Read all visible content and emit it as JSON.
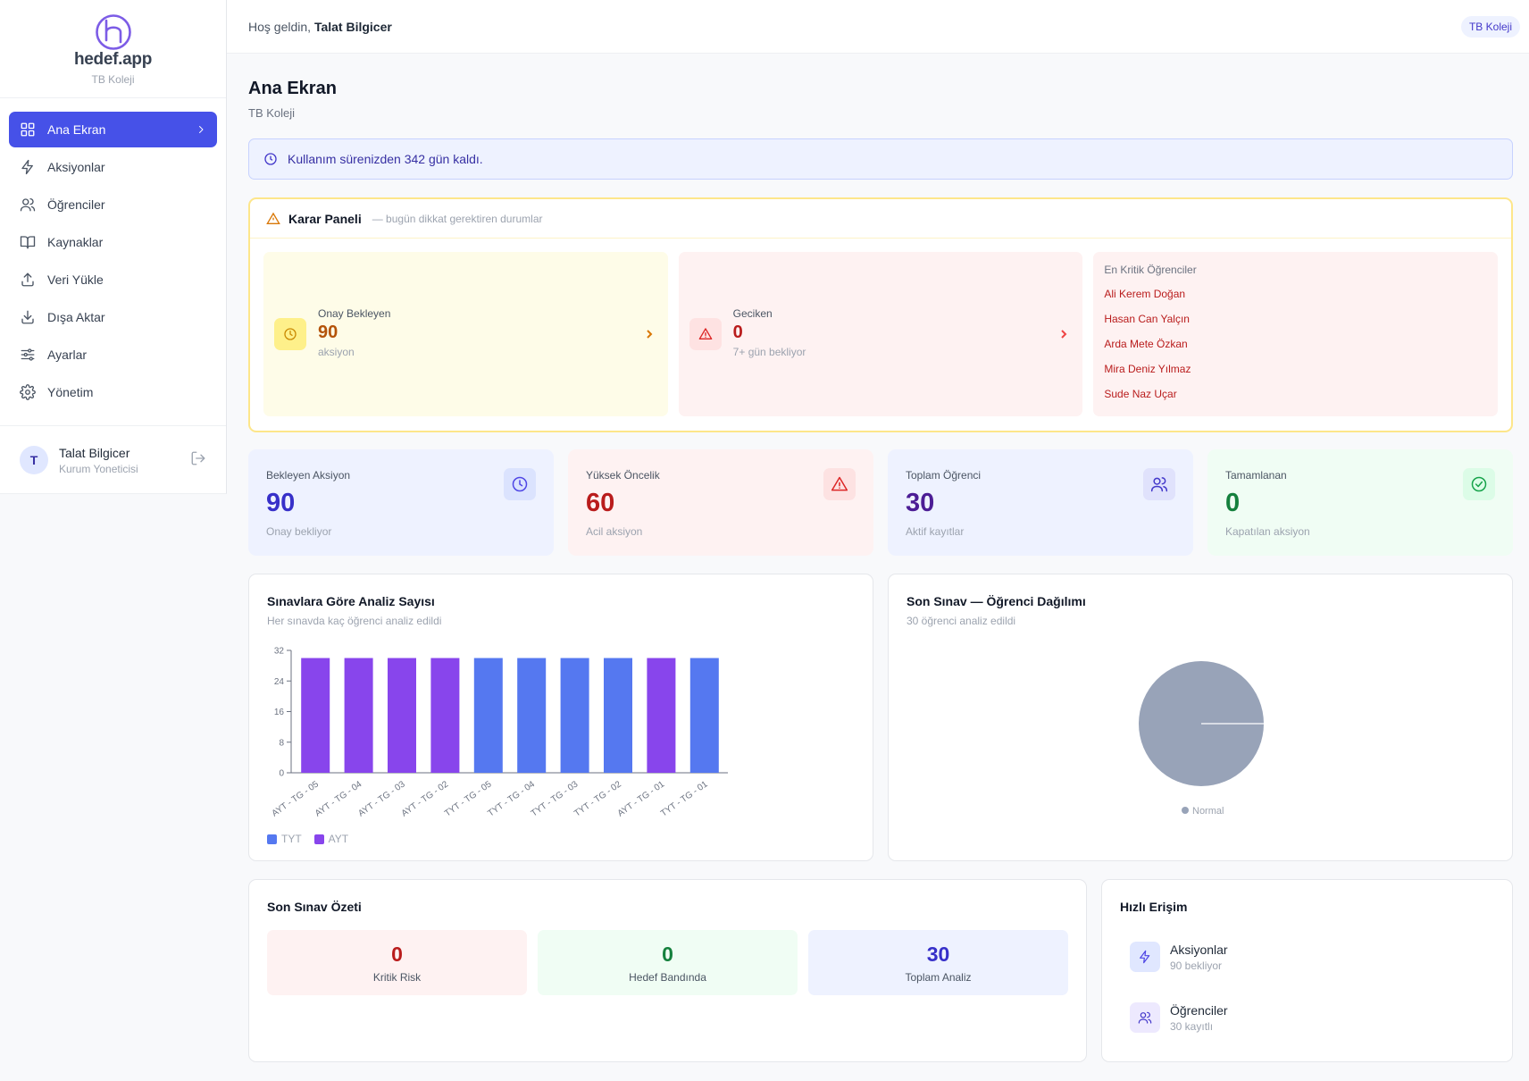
{
  "brand": {
    "name": "hedef.app",
    "school": "TB Koleji"
  },
  "nav": [
    {
      "label": "Ana Ekran",
      "icon": "grid-icon",
      "active": true
    },
    {
      "label": "Aksiyonlar",
      "icon": "bolt-icon"
    },
    {
      "label": "Öğrenciler",
      "icon": "users-icon"
    },
    {
      "label": "Kaynaklar",
      "icon": "book-icon"
    },
    {
      "label": "Veri Yükle",
      "icon": "upload-icon"
    },
    {
      "label": "Dışa Aktar",
      "icon": "download-icon"
    },
    {
      "label": "Ayarlar",
      "icon": "sliders-icon"
    },
    {
      "label": "Yönetim",
      "icon": "gear-icon"
    }
  ],
  "user": {
    "initial": "T",
    "name": "Talat Bilgicer",
    "role": "Kurum Yoneticisi"
  },
  "topbar": {
    "greeting": "Hoş geldin,",
    "user_name": "Talat Bilgicer",
    "school_chip": "TB Koleji"
  },
  "page": {
    "title": "Ana Ekran",
    "subtitle": "TB Koleji"
  },
  "notice": {
    "text": "Kullanım sürenizden 342 gün kaldı."
  },
  "decision": {
    "title": "Karar Paneli",
    "note": "— bugün dikkat gerektiren durumlar",
    "pending": {
      "label": "Onay Bekleyen",
      "value": "90",
      "sub": "aksiyon"
    },
    "late": {
      "label": "Geciken",
      "value": "0",
      "sub": "7+ gün bekliyor"
    },
    "critical": {
      "title": "En Kritik Öğrenciler",
      "students": [
        "Ali Kerem Doğan",
        "Hasan Can Yalçın",
        "Arda Mete Özkan",
        "Mira Deniz Yılmaz",
        "Sude Naz Uçar"
      ]
    }
  },
  "stats": [
    {
      "label": "Bekleyen Aksiyon",
      "value": "90",
      "sub": "Onay bekliyor",
      "icon": "clock-icon"
    },
    {
      "label": "Yüksek Öncelik",
      "value": "60",
      "sub": "Acil aksiyon",
      "icon": "warning-icon"
    },
    {
      "label": "Toplam Öğrenci",
      "value": "30",
      "sub": "Aktif kayıtlar",
      "icon": "users-icon"
    },
    {
      "label": "Tamamlanan",
      "value": "0",
      "sub": "Kapatılan aksiyon",
      "icon": "check-circle-icon"
    }
  ],
  "bar_card": {
    "title": "Sınavlara Göre Analiz Sayısı",
    "subtitle": "Her sınavda kaç öğrenci analiz edildi"
  },
  "pie_card": {
    "title": "Son Sınav — Öğrenci Dağılımı",
    "subtitle": "30 öğrenci analiz edildi"
  },
  "chart_data": [
    {
      "type": "bar",
      "title": "Sınavlara Göre Analiz Sayısı",
      "categories": [
        "AYT - TG - 05",
        "AYT - TG - 04",
        "AYT - TG - 03",
        "AYT - TG - 02",
        "TYT - TG - 05",
        "TYT - TG - 04",
        "TYT - TG - 03",
        "TYT - TG - 02",
        "AYT - TG - 01",
        "TYT - TG - 01"
      ],
      "values": [
        30,
        30,
        30,
        30,
        30,
        30,
        30,
        30,
        30,
        30
      ],
      "groups": [
        "AYT",
        "AYT",
        "AYT",
        "AYT",
        "TYT",
        "TYT",
        "TYT",
        "TYT",
        "AYT",
        "TYT"
      ],
      "yticks": [
        0,
        8,
        16,
        24,
        32
      ],
      "ylim": [
        0,
        32
      ],
      "legend": [
        {
          "name": "TYT",
          "color": "#5578f0"
        },
        {
          "name": "AYT",
          "color": "#8845ec"
        }
      ],
      "legend_position": "bottom-left"
    },
    {
      "type": "pie",
      "title": "Son Sınav — Öğrenci Dağılımı",
      "slices": [
        {
          "name": "Normal",
          "value": 30,
          "color": "#98a3b8"
        }
      ],
      "legend_position": "bottom"
    }
  ],
  "summary": {
    "title": "Son Sınav Özeti",
    "items": [
      {
        "value": "0",
        "label": "Kritik Risk"
      },
      {
        "value": "0",
        "label": "Hedef Bandında"
      },
      {
        "value": "30",
        "label": "Toplam Analiz"
      }
    ]
  },
  "quick": {
    "title": "Hızlı Erişim",
    "items": [
      {
        "label": "Aksiyonlar",
        "sub": "90 bekliyor",
        "icon": "bolt-icon"
      },
      {
        "label": "Öğrenciler",
        "sub": "30 kayıtlı",
        "icon": "users-icon"
      }
    ]
  }
}
